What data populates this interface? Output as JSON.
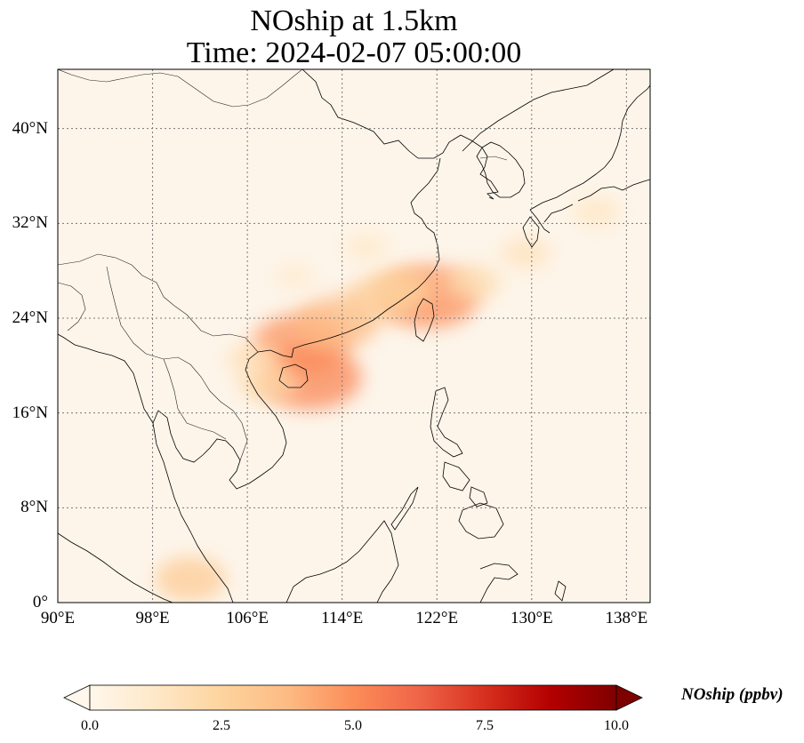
{
  "title": {
    "line1": "NOship at 1.5km",
    "line2": "Time: 2024-02-07 05:00:00"
  },
  "map": {
    "extent": {
      "lon_min": 90,
      "lon_max": 140,
      "lat_min": 0,
      "lat_max": 45
    },
    "gridlines": true,
    "lat_ticks": [
      {
        "value": 40,
        "label": "40°N"
      },
      {
        "value": 32,
        "label": "32°N"
      },
      {
        "value": 24,
        "label": "24°N"
      },
      {
        "value": 16,
        "label": "16°N"
      },
      {
        "value": 8,
        "label": "8°N"
      },
      {
        "value": 0,
        "label": "0°"
      }
    ],
    "lon_ticks": [
      {
        "value": 90,
        "label": "90°E"
      },
      {
        "value": 98,
        "label": "98°E"
      },
      {
        "value": 106,
        "label": "106°E"
      },
      {
        "value": 114,
        "label": "114°E"
      },
      {
        "value": 122,
        "label": "122°E"
      },
      {
        "value": 130,
        "label": "130°E"
      },
      {
        "value": 138,
        "label": "138°E"
      }
    ],
    "field_hotspots": [
      {
        "lon": 110.5,
        "lat": 21.8,
        "value": 4.8
      },
      {
        "lon": 111.3,
        "lat": 19.0,
        "value": 5.2
      },
      {
        "lon": 121.3,
        "lat": 25.8,
        "value": 5.0
      },
      {
        "lon": 113.5,
        "lat": 23.6,
        "value": 3.8
      },
      {
        "lon": 117.0,
        "lat": 25.5,
        "value": 3.0
      },
      {
        "lon": 119.0,
        "lat": 26.5,
        "value": 2.6
      },
      {
        "lon": 125.0,
        "lat": 27.0,
        "value": 2.0
      },
      {
        "lon": 129.5,
        "lat": 29.5,
        "value": 1.6
      },
      {
        "lon": 135.5,
        "lat": 33.0,
        "value": 1.4
      },
      {
        "lon": 107.8,
        "lat": 18.5,
        "value": 2.2
      },
      {
        "lon": 106.5,
        "lat": 20.5,
        "value": 1.8
      },
      {
        "lon": 101.2,
        "lat": 2.0,
        "value": 3.0
      },
      {
        "lon": 116.0,
        "lat": 30.0,
        "value": 1.2
      },
      {
        "lon": 110.0,
        "lat": 27.5,
        "value": 1.0
      }
    ]
  },
  "colorbar": {
    "label": "NOship (ppbv)",
    "min": 0.0,
    "max": 10.0,
    "ticks": [
      "0.0",
      "2.5",
      "5.0",
      "7.5",
      "10.0"
    ],
    "colors": [
      "#fff7ec",
      "#fee8c8",
      "#fdd49e",
      "#fdbb84",
      "#fc8d59",
      "#ef6548",
      "#d7301f",
      "#b30000",
      "#7f0000"
    ],
    "extend": "both"
  }
}
